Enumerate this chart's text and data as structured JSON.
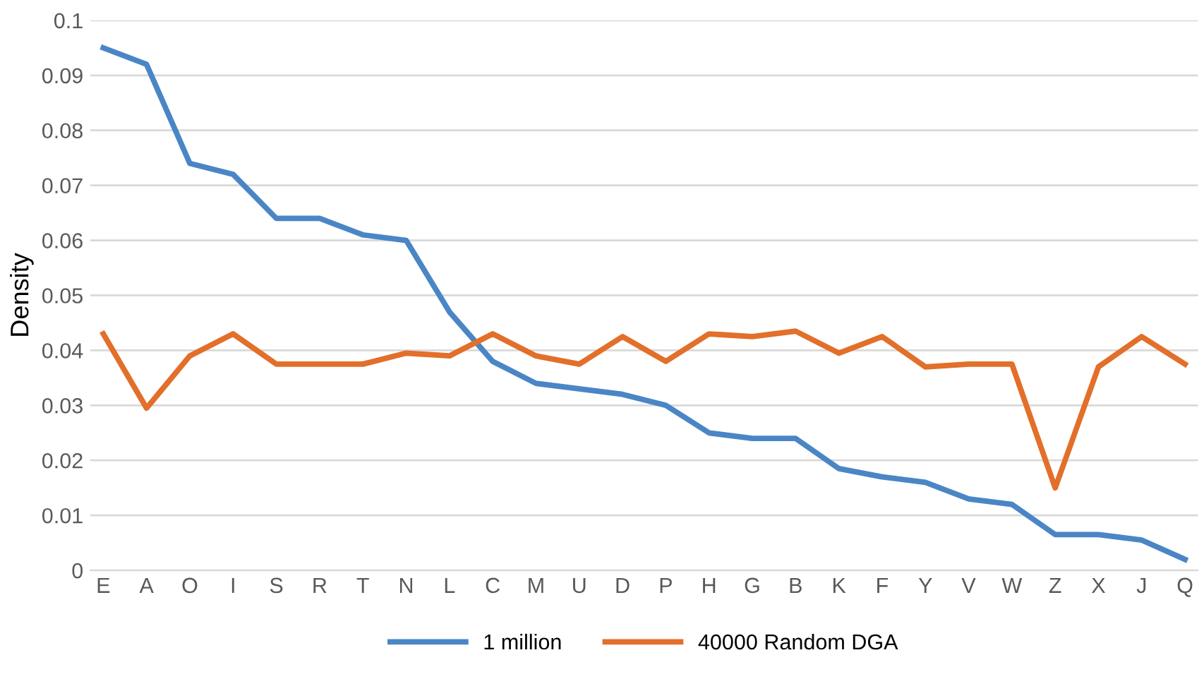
{
  "chart_data": {
    "type": "line",
    "ylabel": "Density",
    "categories": [
      "E",
      "A",
      "O",
      "I",
      "S",
      "R",
      "T",
      "N",
      "L",
      "C",
      "M",
      "U",
      "D",
      "P",
      "H",
      "G",
      "B",
      "K",
      "F",
      "Y",
      "V",
      "W",
      "Z",
      "X",
      "J",
      "Q"
    ],
    "series": [
      {
        "name": "1 million",
        "color": "#4a86c5",
        "values": [
          0.095,
          0.092,
          0.074,
          0.072,
          0.064,
          0.064,
          0.061,
          0.06,
          0.047,
          0.038,
          0.034,
          0.033,
          0.032,
          0.03,
          0.025,
          0.024,
          0.024,
          0.0185,
          0.017,
          0.016,
          0.013,
          0.012,
          0.0065,
          0.0065,
          0.0055,
          0.002
        ]
      },
      {
        "name": "40000 Random DGA",
        "color": "#e26f2a",
        "values": [
          0.043,
          0.0295,
          0.039,
          0.043,
          0.0375,
          0.0375,
          0.0375,
          0.0395,
          0.039,
          0.043,
          0.039,
          0.0375,
          0.0425,
          0.038,
          0.043,
          0.0425,
          0.0435,
          0.0395,
          0.0425,
          0.037,
          0.0375,
          0.0375,
          0.015,
          0.037,
          0.0425,
          0.0375
        ]
      }
    ],
    "ylim": [
      0,
      0.1
    ],
    "yticks": [
      0,
      0.01,
      0.02,
      0.03,
      0.04,
      0.05,
      0.06,
      0.07,
      0.08,
      0.09,
      0.1
    ],
    "grid": "y",
    "legend": "bottom",
    "marker": "none",
    "line_style": "solid"
  }
}
